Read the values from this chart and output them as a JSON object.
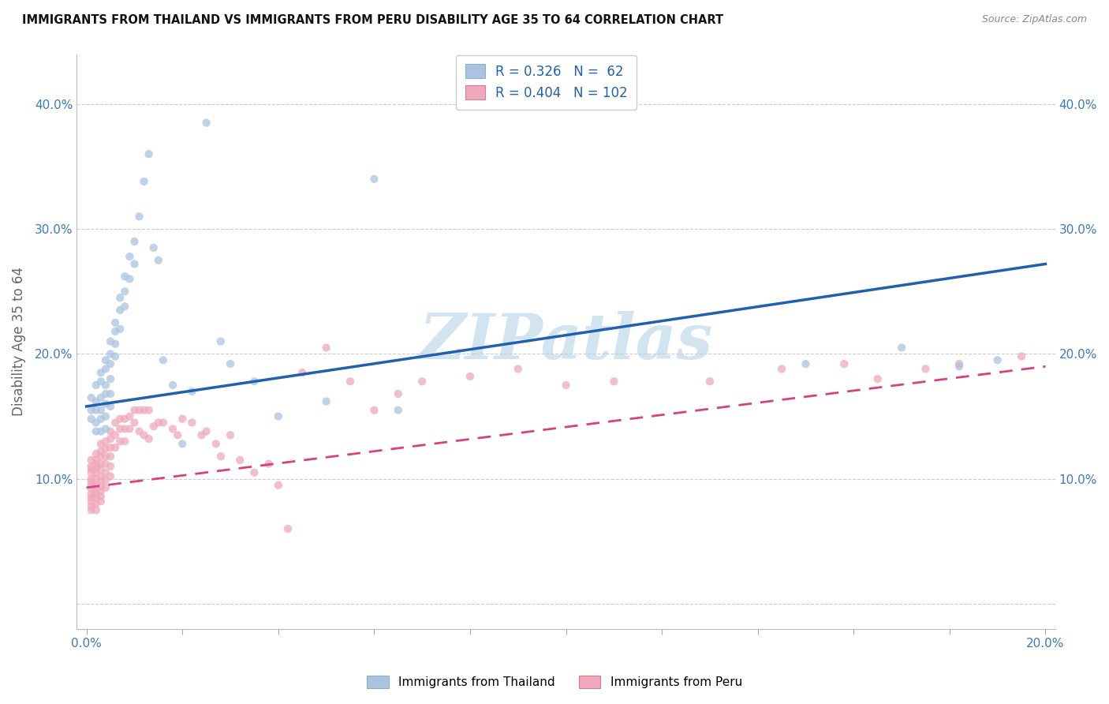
{
  "title": "IMMIGRANTS FROM THAILAND VS IMMIGRANTS FROM PERU DISABILITY AGE 35 TO 64 CORRELATION CHART",
  "source": "Source: ZipAtlas.com",
  "ylabel": "Disability Age 35 to 64",
  "xlim": [
    -0.002,
    0.202
  ],
  "ylim": [
    -0.02,
    0.44
  ],
  "xtick_positions": [
    0.0,
    0.02,
    0.04,
    0.06,
    0.08,
    0.1,
    0.12,
    0.14,
    0.16,
    0.18,
    0.2
  ],
  "ytick_positions": [
    0.0,
    0.1,
    0.2,
    0.3,
    0.4
  ],
  "R_thailand": 0.326,
  "N_thailand": 62,
  "R_peru": 0.404,
  "N_peru": 102,
  "color_thailand": "#aac4e0",
  "color_peru": "#f0a8bc",
  "line_color_thailand": "#2060b0",
  "line_color_peru": "#d84080",
  "watermark": "ZIPatlas",
  "watermark_color_r": 180,
  "watermark_color_g": 210,
  "watermark_color_b": 230,
  "legend_label_thailand": "Immigrants from Thailand",
  "legend_label_peru": "Immigrants from Peru",
  "blue_line_x0": 0.0,
  "blue_line_y0": 0.158,
  "blue_line_x1": 0.2,
  "blue_line_y1": 0.272,
  "pink_line_x0": 0.0,
  "pink_line_y0": 0.093,
  "pink_line_x1": 0.2,
  "pink_line_y1": 0.19,
  "thailand_x": [
    0.001,
    0.001,
    0.001,
    0.002,
    0.002,
    0.002,
    0.002,
    0.002,
    0.003,
    0.003,
    0.003,
    0.003,
    0.003,
    0.003,
    0.004,
    0.004,
    0.004,
    0.004,
    0.004,
    0.004,
    0.004,
    0.005,
    0.005,
    0.005,
    0.005,
    0.005,
    0.005,
    0.006,
    0.006,
    0.006,
    0.006,
    0.007,
    0.007,
    0.007,
    0.008,
    0.008,
    0.008,
    0.009,
    0.009,
    0.01,
    0.01,
    0.011,
    0.012,
    0.013,
    0.014,
    0.015,
    0.016,
    0.018,
    0.02,
    0.022,
    0.025,
    0.028,
    0.03,
    0.035,
    0.04,
    0.05,
    0.06,
    0.065,
    0.15,
    0.17,
    0.182,
    0.19
  ],
  "thailand_y": [
    0.165,
    0.155,
    0.148,
    0.175,
    0.162,
    0.155,
    0.145,
    0.138,
    0.185,
    0.178,
    0.165,
    0.155,
    0.148,
    0.138,
    0.195,
    0.188,
    0.175,
    0.168,
    0.16,
    0.15,
    0.14,
    0.21,
    0.2,
    0.192,
    0.18,
    0.168,
    0.158,
    0.225,
    0.218,
    0.208,
    0.198,
    0.245,
    0.235,
    0.22,
    0.262,
    0.25,
    0.238,
    0.278,
    0.26,
    0.29,
    0.272,
    0.31,
    0.338,
    0.36,
    0.285,
    0.275,
    0.195,
    0.175,
    0.128,
    0.17,
    0.385,
    0.21,
    0.192,
    0.178,
    0.15,
    0.162,
    0.34,
    0.155,
    0.192,
    0.205,
    0.19,
    0.195
  ],
  "peru_x": [
    0.001,
    0.001,
    0.001,
    0.001,
    0.001,
    0.001,
    0.001,
    0.001,
    0.001,
    0.001,
    0.001,
    0.001,
    0.001,
    0.002,
    0.002,
    0.002,
    0.002,
    0.002,
    0.002,
    0.002,
    0.002,
    0.002,
    0.002,
    0.002,
    0.002,
    0.003,
    0.003,
    0.003,
    0.003,
    0.003,
    0.003,
    0.003,
    0.003,
    0.003,
    0.003,
    0.003,
    0.004,
    0.004,
    0.004,
    0.004,
    0.004,
    0.004,
    0.004,
    0.005,
    0.005,
    0.005,
    0.005,
    0.005,
    0.005,
    0.006,
    0.006,
    0.006,
    0.007,
    0.007,
    0.007,
    0.008,
    0.008,
    0.008,
    0.009,
    0.009,
    0.01,
    0.01,
    0.011,
    0.011,
    0.012,
    0.012,
    0.013,
    0.013,
    0.014,
    0.015,
    0.016,
    0.018,
    0.019,
    0.02,
    0.022,
    0.024,
    0.025,
    0.027,
    0.028,
    0.03,
    0.032,
    0.035,
    0.038,
    0.04,
    0.042,
    0.045,
    0.05,
    0.055,
    0.06,
    0.065,
    0.07,
    0.08,
    0.09,
    0.1,
    0.11,
    0.13,
    0.145,
    0.158,
    0.165,
    0.175,
    0.182,
    0.195
  ],
  "peru_y": [
    0.115,
    0.11,
    0.108,
    0.105,
    0.1,
    0.098,
    0.095,
    0.092,
    0.088,
    0.085,
    0.082,
    0.078,
    0.075,
    0.12,
    0.115,
    0.112,
    0.108,
    0.105,
    0.1,
    0.095,
    0.092,
    0.088,
    0.085,
    0.08,
    0.075,
    0.128,
    0.122,
    0.118,
    0.112,
    0.108,
    0.102,
    0.098,
    0.094,
    0.09,
    0.086,
    0.082,
    0.13,
    0.124,
    0.118,
    0.112,
    0.105,
    0.099,
    0.093,
    0.138,
    0.132,
    0.125,
    0.118,
    0.11,
    0.102,
    0.145,
    0.135,
    0.125,
    0.148,
    0.14,
    0.13,
    0.148,
    0.14,
    0.13,
    0.15,
    0.14,
    0.155,
    0.145,
    0.155,
    0.138,
    0.155,
    0.135,
    0.155,
    0.132,
    0.142,
    0.145,
    0.145,
    0.14,
    0.135,
    0.148,
    0.145,
    0.135,
    0.138,
    0.128,
    0.118,
    0.135,
    0.115,
    0.105,
    0.112,
    0.095,
    0.06,
    0.185,
    0.205,
    0.178,
    0.155,
    0.168,
    0.178,
    0.182,
    0.188,
    0.175,
    0.178,
    0.178,
    0.188,
    0.192,
    0.18,
    0.188,
    0.192,
    0.198
  ]
}
